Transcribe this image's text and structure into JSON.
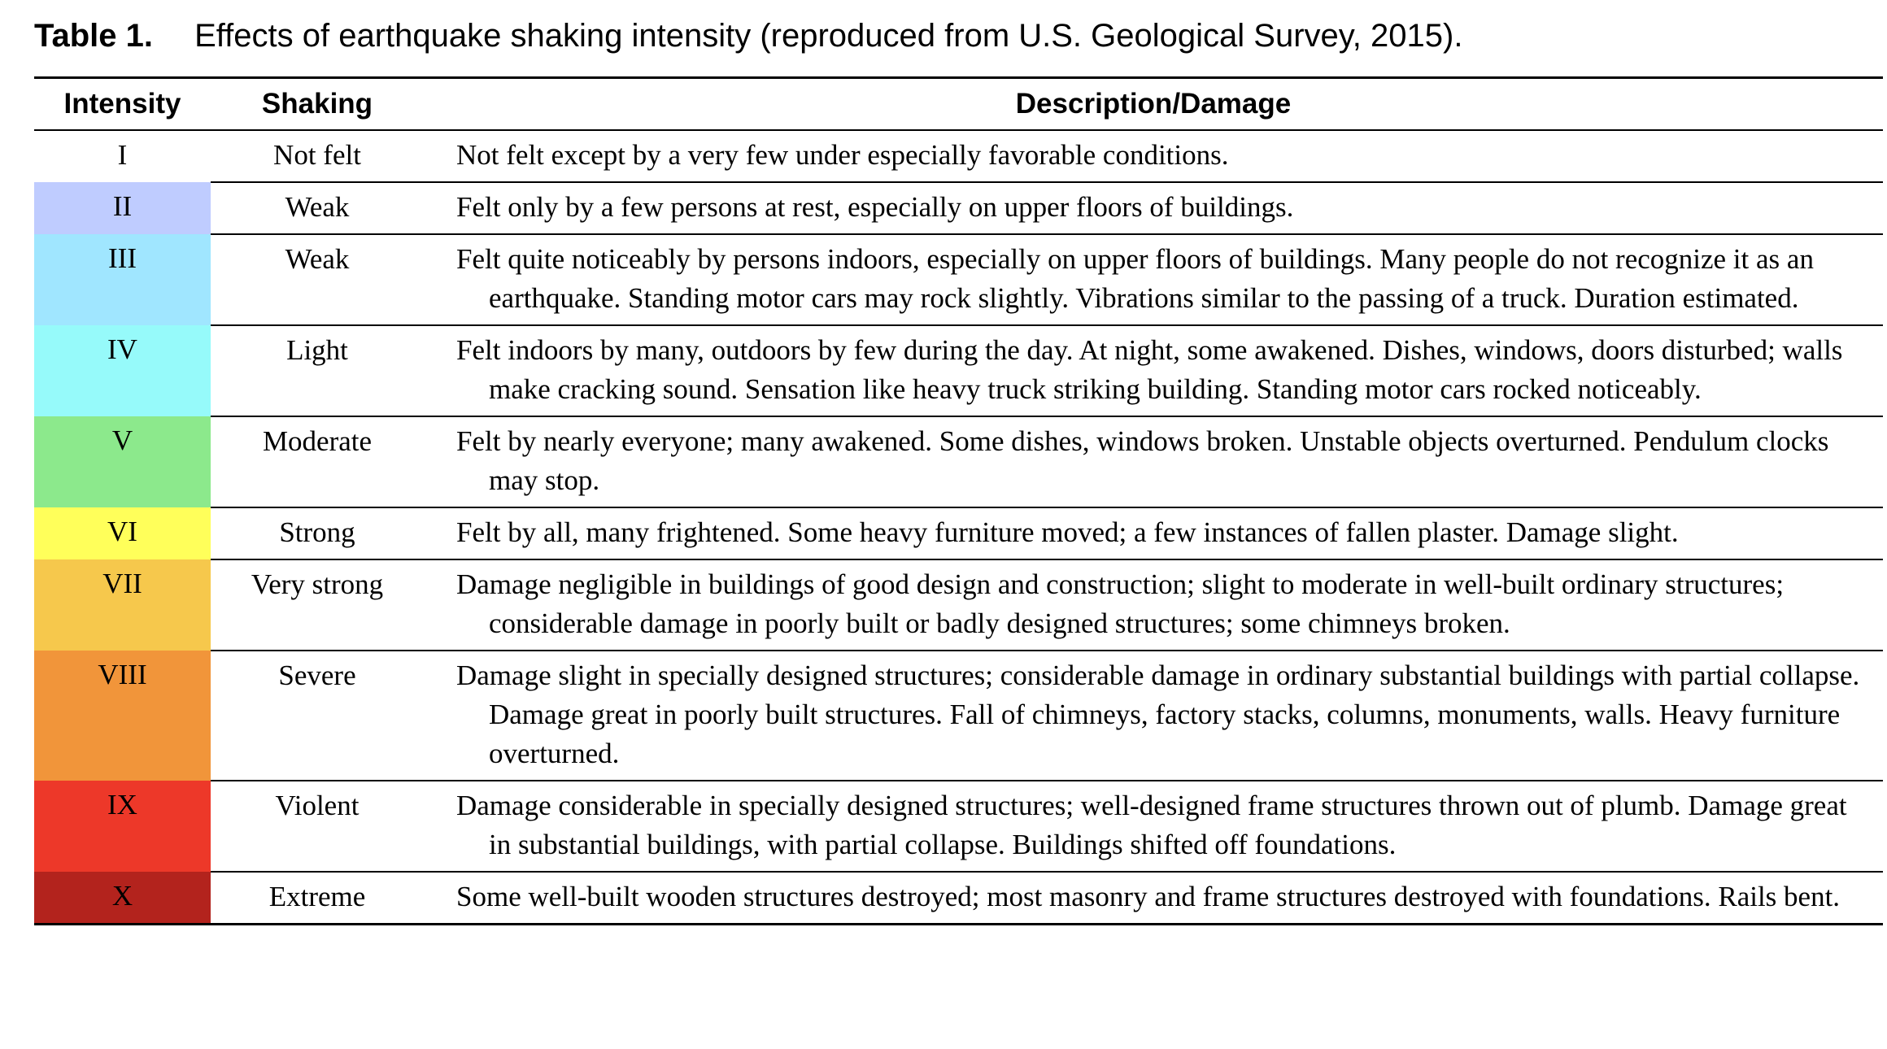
{
  "caption": {
    "label": "Table 1.",
    "text": "Effects of earthquake shaking intensity (reproduced from U.S. Geological Survey, 2015)."
  },
  "table": {
    "headers": {
      "intensity": "Intensity",
      "shaking": "Shaking",
      "description": "Description/Damage"
    },
    "rows": [
      {
        "intensity": "I",
        "shaking": "Not felt",
        "description": "Not felt except by a very few under especially favorable conditions.",
        "color": "#ffffff"
      },
      {
        "intensity": "II",
        "shaking": "Weak",
        "description": "Felt only by a few persons at rest, especially on upper floors of buildings.",
        "color": "#bfccff"
      },
      {
        "intensity": "III",
        "shaking": "Weak",
        "description": "Felt quite noticeably by persons indoors, especially on upper floors of buildings. Many people do not recognize it as an earthquake. Standing motor cars may rock slightly. Vibrations similar to the passing of a truck. Duration estimated.",
        "color": "#a0e6ff"
      },
      {
        "intensity": "IV",
        "shaking": "Light",
        "description": "Felt indoors by many, outdoors by few during the day. At night, some awakened. Dishes, windows, doors disturbed; walls make cracking sound. Sensation like heavy truck striking building. Standing motor cars rocked noticeably.",
        "color": "#96fafa"
      },
      {
        "intensity": "V",
        "shaking": "Moderate",
        "description": "Felt by nearly everyone; many awakened. Some dishes, windows broken. Unstable objects overturned. Pendulum clocks may stop.",
        "color": "#8ce98c"
      },
      {
        "intensity": "VI",
        "shaking": "Strong",
        "description": "Felt by all, many frightened. Some heavy furniture moved; a few instances of fallen plaster. Damage slight.",
        "color": "#ffff5a"
      },
      {
        "intensity": "VII",
        "shaking": "Very strong",
        "description": "Damage negligible in buildings of good design and construction; slight to moderate in well-built ordinary structures; considerable damage in poorly built or badly designed structures; some chimneys broken.",
        "color": "#f6c84c"
      },
      {
        "intensity": "VIII",
        "shaking": "Severe",
        "description": "Damage slight in specially designed structures; considerable damage in ordinary substantial buildings with partial collapse. Damage great in poorly built structures. Fall of chimneys, factory stacks, columns, monuments, walls. Heavy furniture overturned.",
        "color": "#f1953a"
      },
      {
        "intensity": "IX",
        "shaking": "Violent",
        "description": "Damage considerable in specially designed structures; well-designed frame structures thrown out of plumb. Damage great in substantial buildings, with partial collapse. Buildings shifted off foundations.",
        "color": "#ed3829"
      },
      {
        "intensity": "X",
        "shaking": "Extreme",
        "description": "Some well-built wooden structures destroyed; most masonry and frame structures destroyed with foundations. Rails bent.",
        "color": "#b3231d"
      }
    ]
  }
}
